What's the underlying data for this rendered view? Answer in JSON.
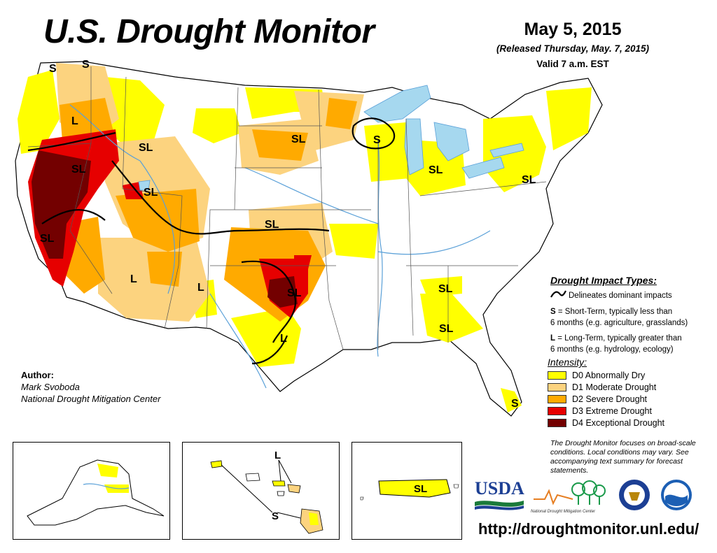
{
  "header": {
    "title": "U.S. Drought Monitor",
    "date": "May 5, 2015",
    "released": "(Released Thursday, May. 7, 2015)",
    "valid": "Valid 7 a.m. EST"
  },
  "impact_legend": {
    "heading": "Drought Impact Types:",
    "delineates": "Delineates dominant impacts",
    "short_term_key": "S",
    "short_term_text_1": " = Short-Term, typically less than",
    "short_term_text_2": "6 months (e.g. agriculture, grasslands)",
    "long_term_key": "L",
    "long_term_text_1": " = Long-Term, typically greater than",
    "long_term_text_2": "6 months (e.g. hydrology, ecology)"
  },
  "intensity_legend": {
    "heading": "Intensity:",
    "items": [
      {
        "label": "D0 Abnormally Dry",
        "color": "#ffff00"
      },
      {
        "label": "D1 Moderate Drought",
        "color": "#fcd37f"
      },
      {
        "label": "D2 Severe Drought",
        "color": "#ffaa00"
      },
      {
        "label": "D3 Extreme Drought",
        "color": "#e60000"
      },
      {
        "label": "D4 Exceptional Drought",
        "color": "#730000"
      }
    ]
  },
  "author": {
    "heading": "Author:",
    "name": "Mark Svoboda",
    "org": "National Drought Mitigation Center"
  },
  "note": "The Drought Monitor focuses on broad-scale conditions. Local conditions may vary. See accompanying text summary for forecast statements.",
  "url": "http://droughtmonitor.unl.edu/",
  "map_labels": {
    "s_wa": "S",
    "s_wa2": "S",
    "l_or": "L",
    "sl_id": "SL",
    "sl_nv": "SL",
    "sl_ut": "SL",
    "sl_ca": "SL",
    "l_az": "L",
    "l_nm": "L",
    "sl_ks": "SL",
    "sl_ok": "SL",
    "l_tx": "L",
    "sl_dak": "SL",
    "s_wi": "S",
    "sl_mi": "SL",
    "sl_ny": "SL",
    "sl_tn": "SL",
    "sl_ga": "SL",
    "s_fl": "S",
    "l_hi": "L",
    "s_hi": "S",
    "sl_pr": "SL"
  },
  "logos": {
    "usda": "USDA",
    "ndmc": "National Drought Mitigation Center"
  },
  "colors": {
    "water": "#a6d8ef",
    "river": "#5aa0d8",
    "d0": "#ffff00",
    "d1": "#fcd37f",
    "d2": "#ffaa00",
    "d3": "#e60000",
    "d4": "#730000"
  }
}
